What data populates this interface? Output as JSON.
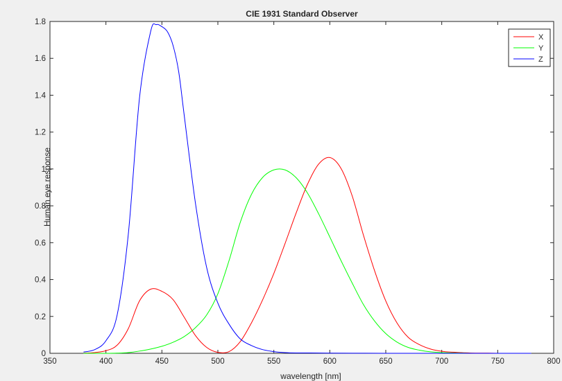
{
  "chart_data": {
    "type": "line",
    "title": "CIE 1931 Standard Observer",
    "xlabel": "wavelength [nm]",
    "ylabel": "Human eye response",
    "xlim": [
      350,
      800
    ],
    "ylim": [
      0,
      1.8
    ],
    "xticks": [
      "350",
      "400",
      "450",
      "500",
      "550",
      "600",
      "650",
      "700",
      "750",
      "800"
    ],
    "yticks": [
      "0",
      "0.2",
      "0.4",
      "0.6",
      "0.8",
      "1",
      "1.2",
      "1.4",
      "1.6",
      "1.8"
    ],
    "grid": false,
    "legend_position": "top-right",
    "series": [
      {
        "name": "X",
        "color": "#ff0000",
        "x": [
          380,
          390,
          400,
          410,
          420,
          430,
          440,
          450,
          460,
          470,
          480,
          490,
          500,
          510,
          520,
          530,
          540,
          550,
          560,
          570,
          580,
          590,
          600,
          610,
          620,
          630,
          640,
          650,
          660,
          670,
          680,
          690,
          700,
          710,
          720,
          730,
          740,
          750,
          760,
          770,
          780
        ],
        "y": [
          0.001,
          0.004,
          0.014,
          0.044,
          0.134,
          0.284,
          0.348,
          0.336,
          0.291,
          0.195,
          0.096,
          0.032,
          0.005,
          0.009,
          0.063,
          0.165,
          0.29,
          0.433,
          0.595,
          0.762,
          0.916,
          1.026,
          1.062,
          1.003,
          0.854,
          0.642,
          0.448,
          0.284,
          0.165,
          0.087,
          0.047,
          0.023,
          0.011,
          0.006,
          0.003,
          0.001,
          0.001,
          0.0,
          0.0,
          0.0,
          0.0
        ]
      },
      {
        "name": "Y",
        "color": "#00ff00",
        "x": [
          380,
          390,
          400,
          410,
          420,
          430,
          440,
          450,
          460,
          470,
          480,
          490,
          500,
          510,
          520,
          530,
          540,
          550,
          560,
          570,
          580,
          590,
          600,
          610,
          620,
          630,
          640,
          650,
          660,
          670,
          680,
          690,
          700,
          710,
          720,
          730,
          740,
          750,
          760,
          770,
          780
        ],
        "y": [
          0.0,
          0.0,
          0.0,
          0.001,
          0.004,
          0.012,
          0.023,
          0.038,
          0.06,
          0.091,
          0.139,
          0.208,
          0.323,
          0.503,
          0.71,
          0.862,
          0.954,
          0.995,
          0.995,
          0.952,
          0.87,
          0.757,
          0.631,
          0.503,
          0.381,
          0.265,
          0.175,
          0.107,
          0.061,
          0.032,
          0.017,
          0.008,
          0.004,
          0.002,
          0.001,
          0.0,
          0.0,
          0.0,
          0.0,
          0.0,
          0.0
        ]
      },
      {
        "name": "Z",
        "color": "#0000ff",
        "x": [
          380,
          390,
          400,
          410,
          420,
          430,
          440,
          445,
          450,
          455,
          460,
          465,
          470,
          480,
          490,
          500,
          510,
          520,
          530,
          540,
          550,
          560,
          570,
          580,
          600,
          650,
          700,
          780
        ],
        "y": [
          0.007,
          0.02,
          0.068,
          0.207,
          0.646,
          1.386,
          1.747,
          1.783,
          1.772,
          1.744,
          1.669,
          1.528,
          1.288,
          0.813,
          0.465,
          0.272,
          0.158,
          0.078,
          0.042,
          0.02,
          0.009,
          0.004,
          0.002,
          0.002,
          0.001,
          0.0,
          0.0,
          0.0
        ]
      }
    ]
  }
}
